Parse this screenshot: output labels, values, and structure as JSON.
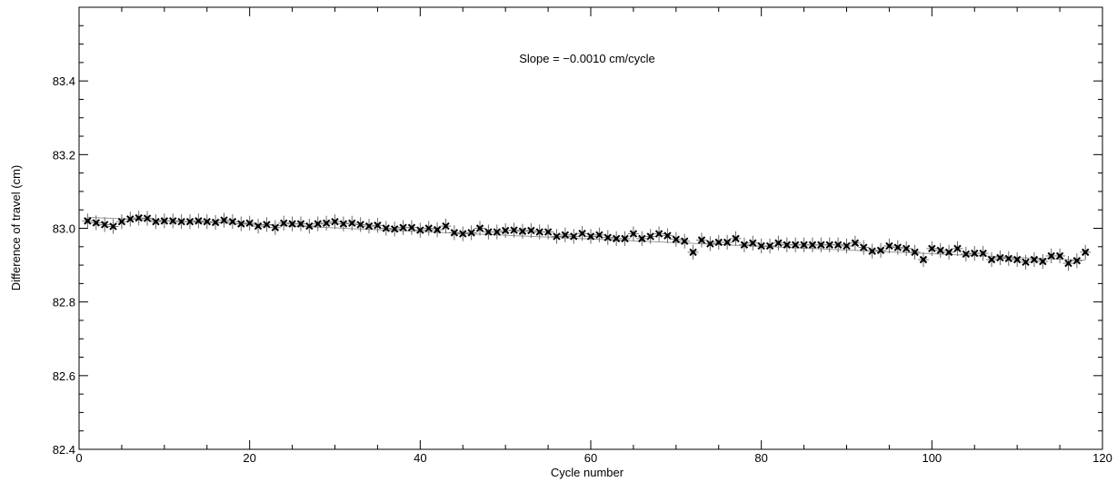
{
  "chart_data": {
    "type": "scatter",
    "title": "",
    "xlabel": "Cycle number",
    "ylabel": "Difference of travel  (cm)",
    "annotation": "Slope = −0.0010 cm/cycle",
    "xlim": [
      0,
      120
    ],
    "ylim": [
      82.4,
      83.6
    ],
    "x_ticks": [
      0,
      20,
      40,
      60,
      80,
      100,
      120
    ],
    "y_ticks": [
      82.4,
      82.6,
      82.8,
      83.0,
      83.2,
      83.4
    ],
    "x_tick_labels": [
      "0",
      "20",
      "40",
      "60",
      "80",
      "100",
      "120"
    ],
    "y_tick_labels": [
      "82.4",
      "82.6",
      "82.8",
      "83.0",
      "83.2",
      "83.4"
    ],
    "grid": false,
    "fit_line": {
      "slope": -0.001,
      "intercept": 83.031
    },
    "error_bar": 0.02,
    "series": [
      {
        "x": [
          1,
          2,
          3,
          4,
          5,
          6,
          7,
          8,
          9,
          10,
          11,
          12,
          13,
          14,
          15,
          16,
          17,
          18,
          19,
          20,
          21,
          22,
          23,
          24,
          25,
          26,
          27,
          28,
          29,
          30,
          31,
          32,
          33,
          34,
          35,
          36,
          37,
          38,
          39,
          40,
          41,
          42,
          43,
          44,
          45,
          46,
          47,
          48,
          49,
          50,
          51,
          52,
          53,
          54,
          55,
          56,
          57,
          58,
          59,
          60,
          61,
          62,
          63,
          64,
          65,
          66,
          67,
          68,
          69,
          70,
          71,
          72,
          73,
          74,
          75,
          76,
          77,
          78,
          79,
          80,
          81,
          82,
          83,
          84,
          85,
          86,
          87,
          88,
          89,
          90,
          91,
          92,
          93,
          94,
          95,
          96,
          97,
          98,
          99,
          100,
          101,
          102,
          103,
          104,
          105,
          106,
          107,
          108,
          109,
          110,
          111,
          112,
          113,
          114,
          115,
          116,
          117,
          118
        ],
        "y": [
          83.02,
          83.015,
          83.01,
          83.005,
          83.018,
          83.025,
          83.028,
          83.027,
          83.018,
          83.02,
          83.02,
          83.018,
          83.018,
          83.02,
          83.018,
          83.016,
          83.022,
          83.018,
          83.012,
          83.014,
          83.006,
          83.01,
          83.002,
          83.014,
          83.012,
          83.012,
          83.006,
          83.012,
          83.014,
          83.018,
          83.012,
          83.014,
          83.01,
          83.006,
          83.008,
          83.0,
          82.998,
          83.002,
          83.002,
          82.995,
          83.0,
          82.996,
          83.006,
          82.988,
          82.985,
          82.988,
          83.0,
          82.99,
          82.99,
          82.994,
          82.995,
          82.992,
          82.994,
          82.99,
          82.99,
          82.978,
          82.982,
          82.978,
          82.986,
          82.978,
          82.982,
          82.975,
          82.972,
          82.972,
          82.985,
          82.972,
          82.978,
          82.985,
          82.98,
          82.97,
          82.965,
          82.935,
          82.968,
          82.958,
          82.962,
          82.962,
          82.972,
          82.955,
          82.96,
          82.952,
          82.952,
          82.96,
          82.955,
          82.955,
          82.955,
          82.955,
          82.955,
          82.955,
          82.955,
          82.952,
          82.96,
          82.948,
          82.938,
          82.94,
          82.952,
          82.948,
          82.945,
          82.935,
          82.915,
          82.945,
          82.94,
          82.935,
          82.945,
          82.93,
          82.932,
          82.932,
          82.915,
          82.92,
          82.918,
          82.915,
          82.908,
          82.915,
          82.91,
          82.925,
          82.925,
          82.905,
          82.912,
          82.935
        ]
      }
    ]
  }
}
